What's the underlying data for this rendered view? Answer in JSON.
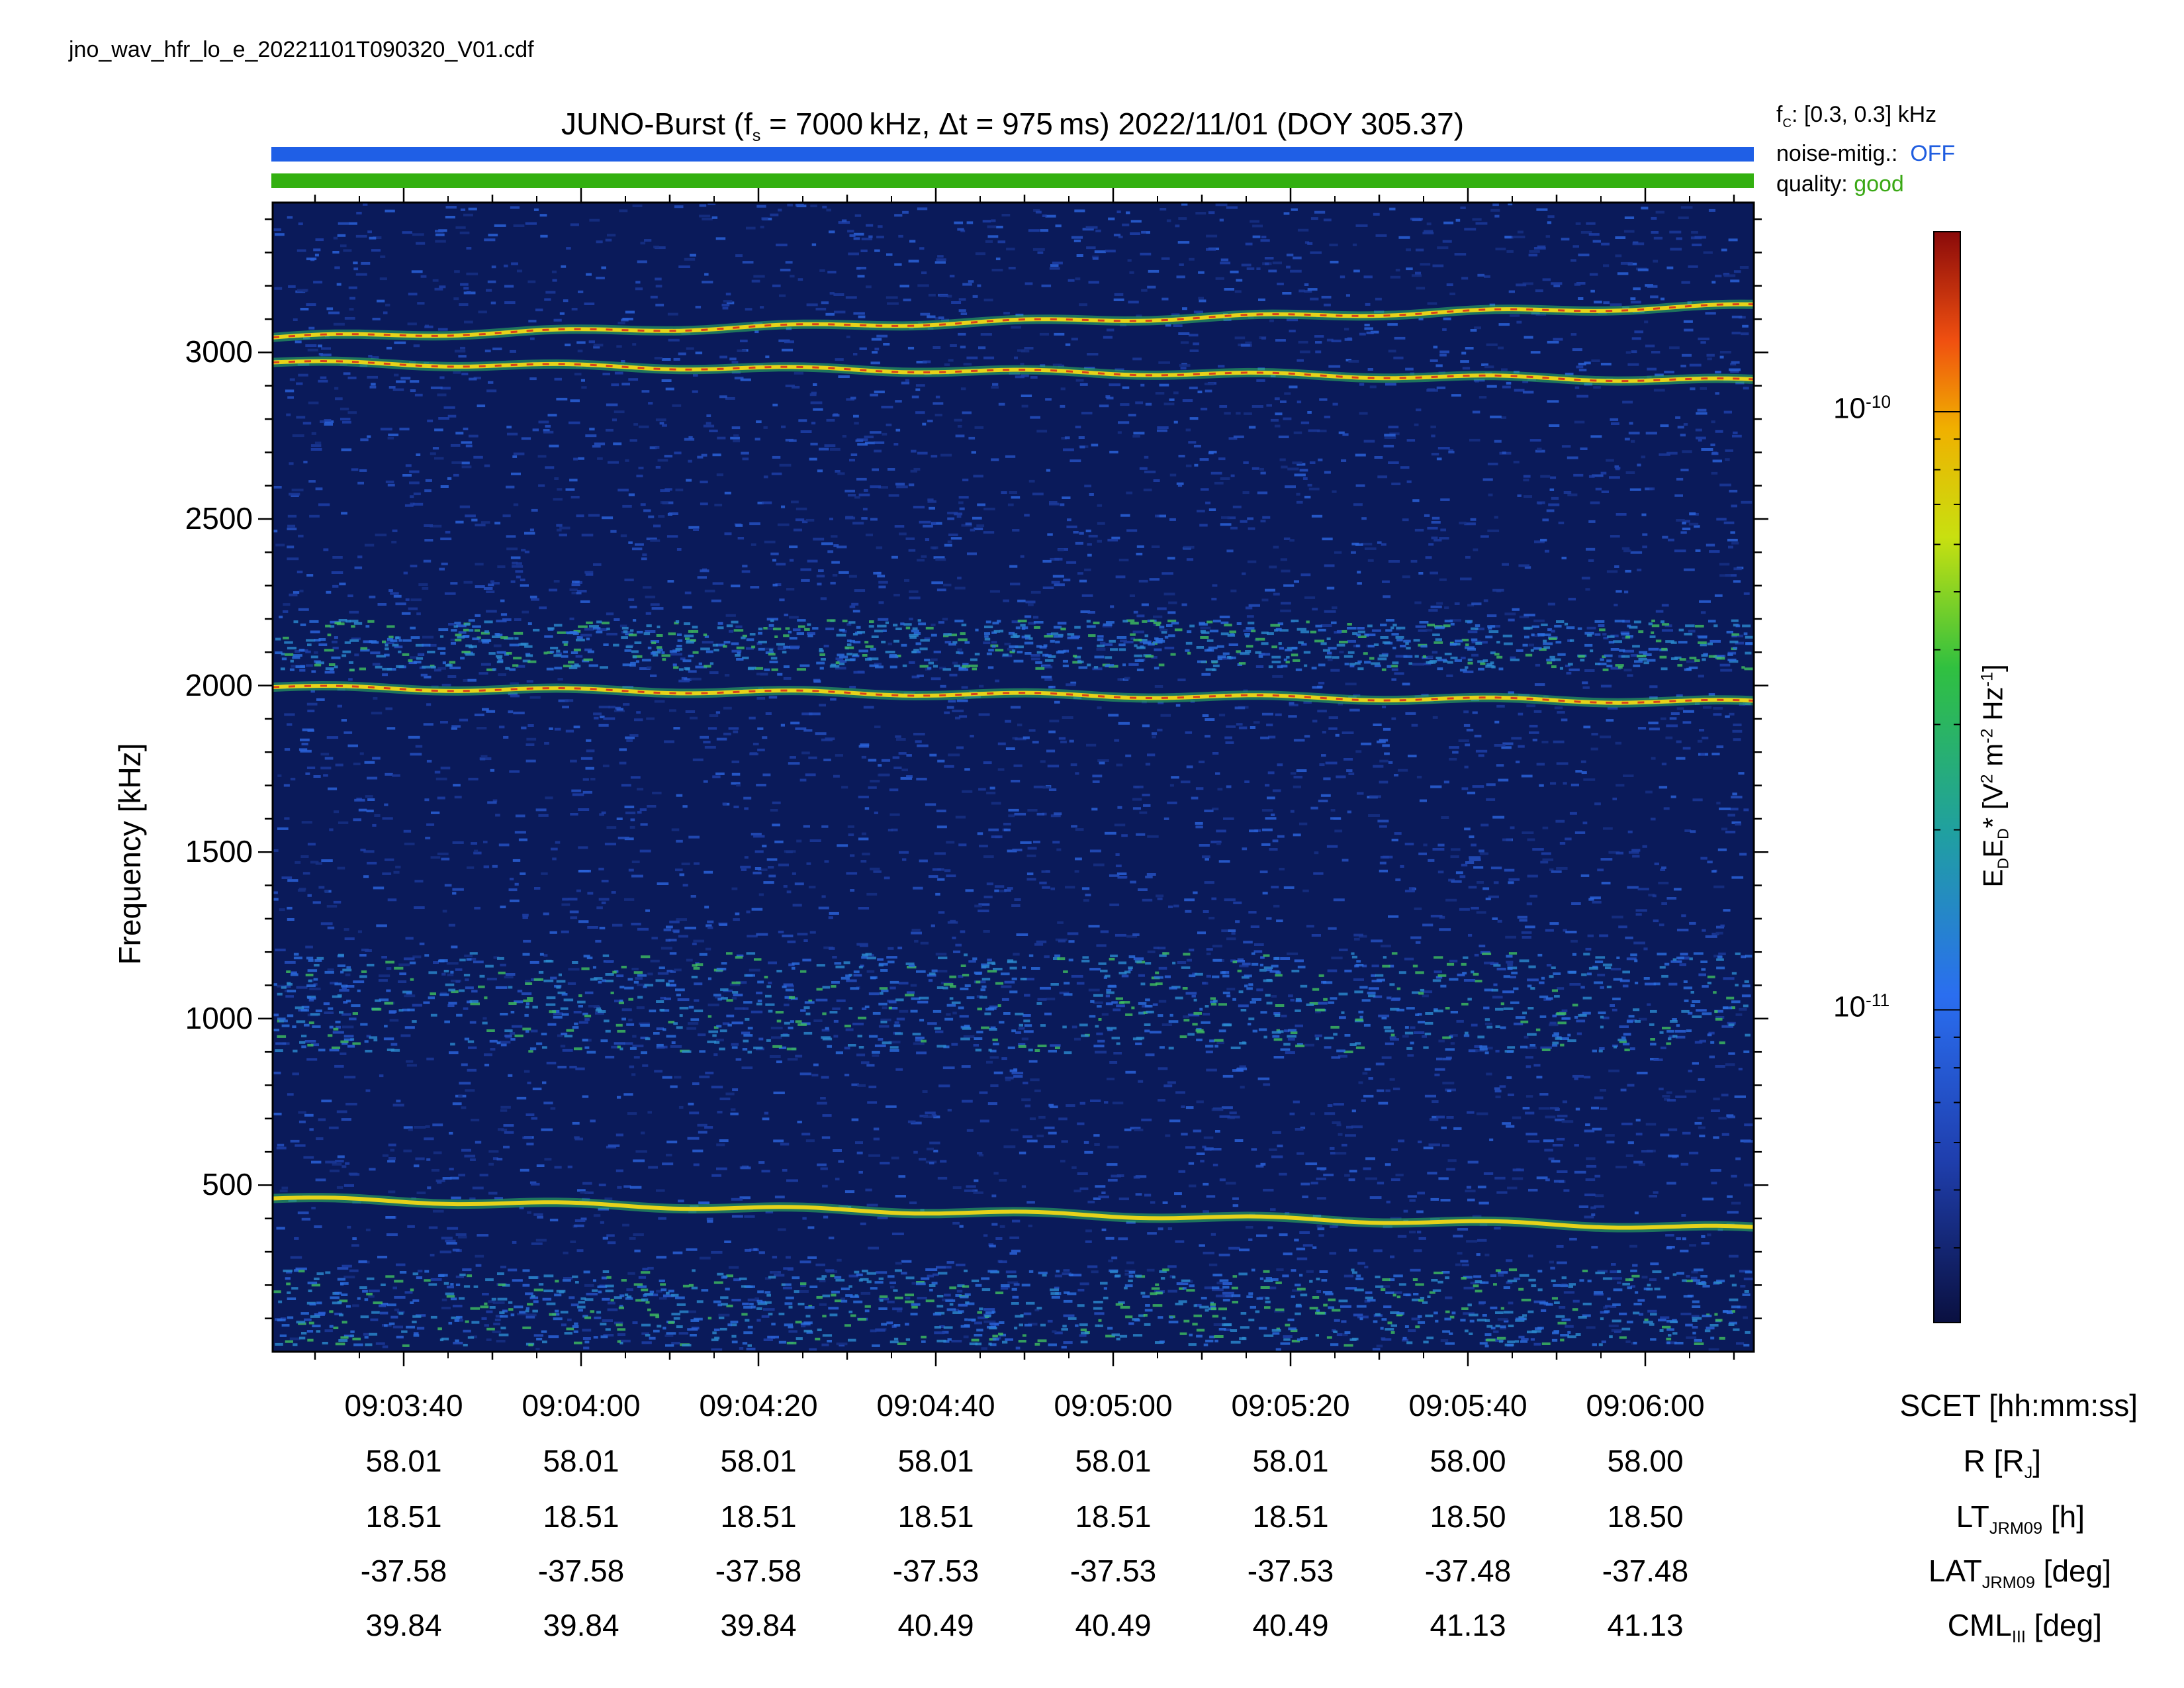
{
  "filename": "jno_wav_hfr_lo_e_20221101T090320_V01.cdf",
  "title_main": "JUNO-Burst (f",
  "title_sub": "s",
  "title_rest": " = 7000 kHz, Δt = 975 ms)  2022/11/01 (DOY 305.37)",
  "side_info": {
    "fc_label": "f",
    "fc_sub": "C",
    "fc_value": ": [0.3, 0.3] kHz",
    "noise_label": "noise-mitig.:",
    "noise_value": "OFF",
    "quality_label": "quality:",
    "quality_value": "good"
  },
  "colors": {
    "noise_bar": "#1f5fe6",
    "quality_bar": "#33b010",
    "background": "#0a1a5a"
  },
  "chart_data": {
    "type": "heatmap",
    "ylabel": "Frequency [kHz]",
    "ylim": [
      0,
      3450
    ],
    "yticks": [
      500,
      1000,
      1500,
      2000,
      2500,
      3000
    ],
    "x_ticks": [
      "09:03:40",
      "09:04:00",
      "09:04:20",
      "09:04:40",
      "09:05:00",
      "09:05:20",
      "09:05:40",
      "09:06:00"
    ],
    "colorbar": {
      "label": "E_D E_D* [V^2 m^-2 Hz^-1]",
      "scale": "log",
      "ticks": [
        "10^-10",
        "10^-11"
      ],
      "range": [
        3e-12,
        2e-10
      ]
    },
    "emission_lines_khz": [
      {
        "start": 3045,
        "end": 3140,
        "intensity": "high"
      },
      {
        "start": 2970,
        "end": 2915,
        "intensity": "high"
      },
      {
        "start": 1995,
        "end": 1950,
        "intensity": "high"
      },
      {
        "start": 460,
        "end": 370,
        "intensity": "medium"
      }
    ],
    "diffuse_bands_khz": [
      {
        "low": 900,
        "high": 1200
      },
      {
        "low": 2050,
        "high": 2200
      },
      {
        "low": 20,
        "high": 250
      }
    ]
  },
  "ephemeris": {
    "labels": {
      "scet": "SCET [hh:mm:ss]",
      "r": "R [R",
      "r_sub": "J",
      "r_end": "]",
      "lt": "LT",
      "lt_sub": "JRM09",
      "lt_end": " [h]",
      "lat": "LAT",
      "lat_sub": "JRM09",
      "lat_end": " [deg]",
      "cml": "CML",
      "cml_sub": "III",
      "cml_end": " [deg]"
    },
    "r": [
      "58.01",
      "58.01",
      "58.01",
      "58.01",
      "58.01",
      "58.01",
      "58.00",
      "58.00"
    ],
    "lt": [
      "18.51",
      "18.51",
      "18.51",
      "18.51",
      "18.51",
      "18.51",
      "18.50",
      "18.50"
    ],
    "lat": [
      "-37.58",
      "-37.58",
      "-37.58",
      "-37.53",
      "-37.53",
      "-37.53",
      "-37.48",
      "-37.48"
    ],
    "cml": [
      "39.84",
      "39.84",
      "39.84",
      "40.49",
      "40.49",
      "40.49",
      "41.13",
      "41.13"
    ]
  }
}
